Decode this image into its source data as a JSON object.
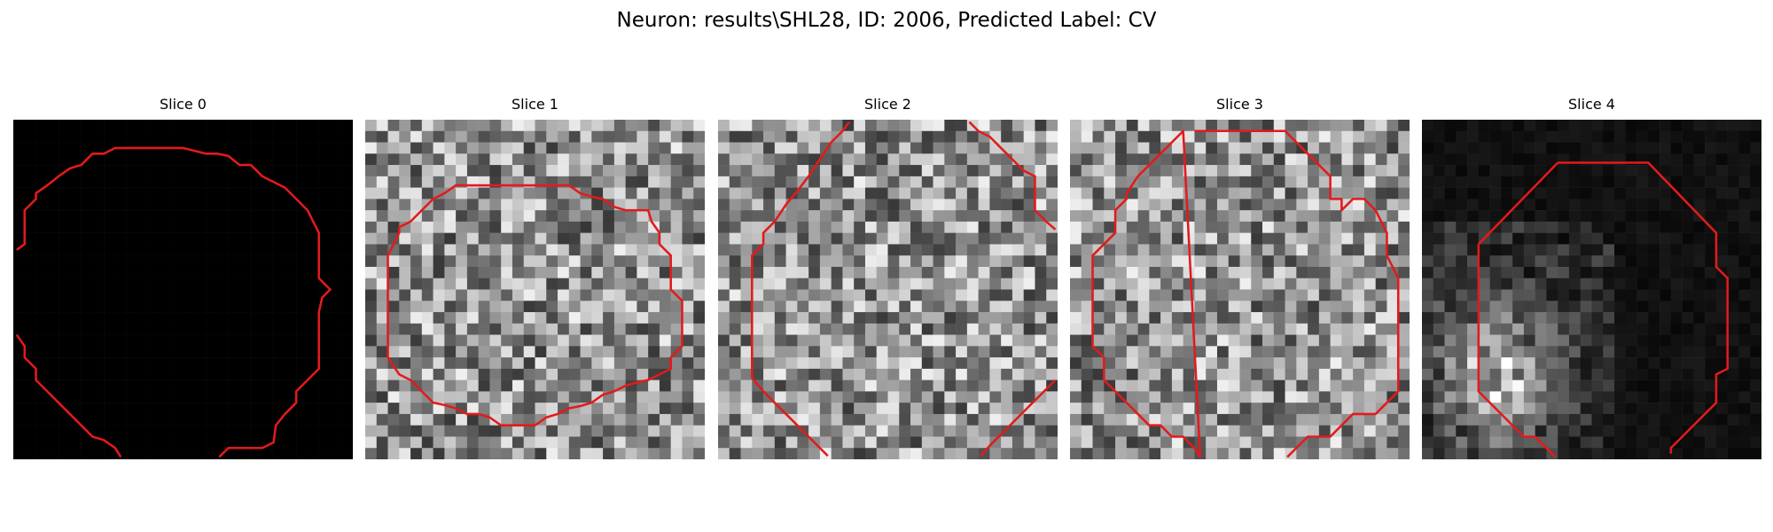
{
  "figure": {
    "suptitle": "Neuron: results\\SHL28, ID: 2006, Predicted Label: CV"
  },
  "panels": [
    {
      "title": "Slice 0",
      "image": "black",
      "contour_color": "#e31a1c"
    },
    {
      "title": "Slice 1",
      "image": "noise",
      "contour_color": "#e31a1c"
    },
    {
      "title": "Slice 2",
      "image": "noise",
      "contour_color": "#e31a1c"
    },
    {
      "title": "Slice 3",
      "image": "noise",
      "contour_color": "#e31a1c"
    },
    {
      "title": "Slice 4",
      "image": "sparse-bright-left",
      "contour_color": "#e31a1c"
    }
  ]
}
